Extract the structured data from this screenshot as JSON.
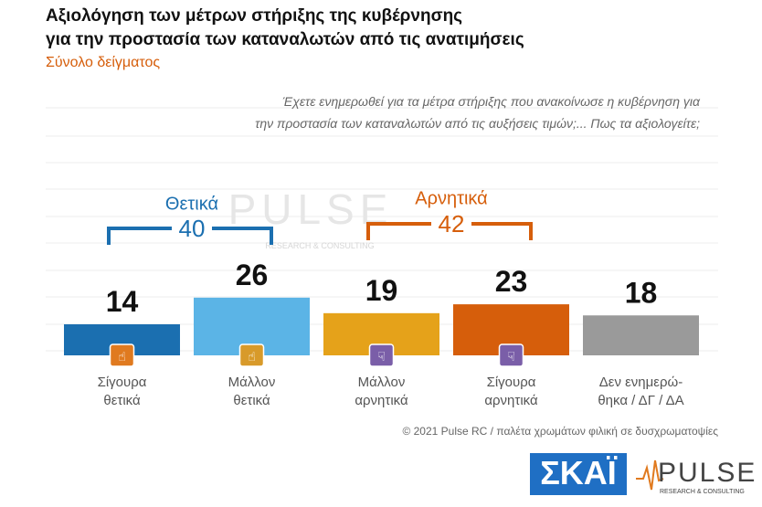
{
  "chart_data": {
    "type": "bar",
    "title_lines": [
      "Αξιολόγηση των μέτρων στήριξης της κυβέρνησης",
      "για την προστασία των καταναλωτών από τις ανατιμήσεις"
    ],
    "subtitle": "Σύνολο δείγματος",
    "question_lines": [
      "Έχετε ενημερωθεί για τα μέτρα στήριξης που ανακοίνωσε η κυβέρνηση για",
      "την προστασία των καταναλωτών από τις αυξήσεις τιμών;... Πως τα αξιολογείτε;"
    ],
    "categories": [
      "Σίγουρα θετικά",
      "Μάλλον θετικά",
      "Μάλλον αρνητικά",
      "Σίγουρα αρνητικά",
      "Δεν ενημερώ-θηκα / ΔΓ / ΔΑ"
    ],
    "values": [
      14,
      26,
      19,
      23,
      18
    ],
    "colors": [
      "#1b6fb0",
      "#5bb4e6",
      "#e5a21a",
      "#d65e0b",
      "#9a9a9a"
    ],
    "groups": [
      {
        "name": "Θετικά",
        "value": 40,
        "color": "#1b6fb0"
      },
      {
        "name": "Αρνητικά",
        "value": 42,
        "color": "#d65e0b"
      }
    ],
    "footer": "© 2021 Pulse RC  /  παλέτα χρωμάτων φιλική σε δυσχρωματοψίες",
    "logos": {
      "skai": "ΣΚΑΪ",
      "pulse": "PULSE",
      "pulse_sub": "RESEARCH & CONSULTING"
    }
  }
}
